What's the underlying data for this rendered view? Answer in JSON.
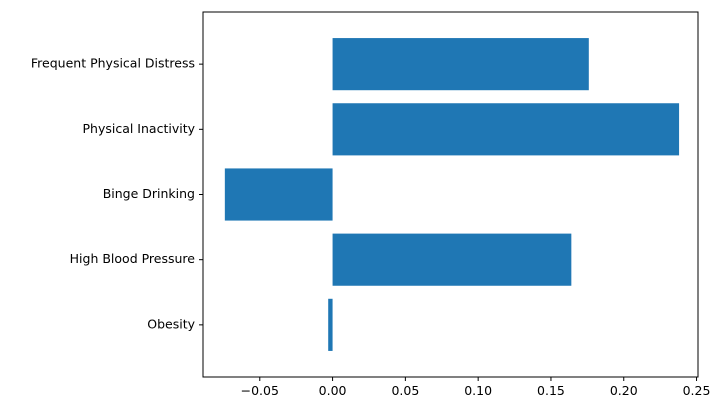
{
  "chart_data": {
    "type": "bar",
    "orientation": "horizontal",
    "categories": [
      "Obesity",
      "High Blood Pressure",
      "Binge Drinking",
      "Physical Inactivity",
      "Frequent Physical Distress"
    ],
    "values": [
      -0.003,
      0.164,
      -0.074,
      0.238,
      0.176
    ],
    "title": "",
    "xlabel": "",
    "ylabel": "",
    "xlim": [
      -0.089,
      0.251
    ],
    "xticks": [
      -0.05,
      0.0,
      0.05,
      0.1,
      0.15,
      0.2,
      0.25
    ],
    "xtick_labels": [
      "−0.05",
      "0.00",
      "0.05",
      "0.10",
      "0.15",
      "0.20",
      "0.25"
    ],
    "grid": false,
    "legend": "none",
    "colors": {
      "bar": "#1f77b4",
      "axes": "#000000",
      "background": "#ffffff"
    }
  }
}
